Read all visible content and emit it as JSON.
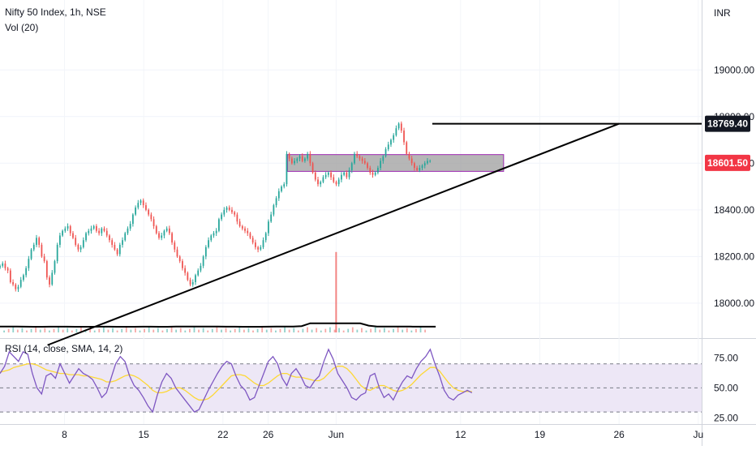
{
  "header": {
    "symbol_line": "Nifty 50 Index, 1h, NSE",
    "volume_label": "Vol (20)"
  },
  "currency": "INR",
  "rsi": {
    "label": "RSI (14, close, SMA, 14, 2)",
    "ticks": [
      "75.00",
      "50.00",
      "25.00"
    ]
  },
  "price_tags": [
    {
      "label": "18769.40",
      "value": 18769.4,
      "style": "dark"
    },
    {
      "label": "18601.50",
      "value": 18601.5,
      "style": "red"
    }
  ],
  "colors": {
    "up": "#26a69a",
    "down": "#ef5350",
    "grid": "#e0e3eb",
    "text": "#131722",
    "zone_fill": "#9e9e9e",
    "zone_border": "#9c27b0",
    "rsi_line": "#7e57c2",
    "rsi_ma": "#fdd835",
    "rsi_band": "#ede7f6",
    "tag_red": "#f23645",
    "tag_dark": "#131722"
  },
  "chart_data": {
    "type": "candlestick",
    "price_axis": {
      "ylim": [
        17850,
        19300
      ],
      "ticks": [
        "19000.00",
        "18800.00",
        "18600.00",
        "18400.00",
        "18200.00",
        "18000.00"
      ],
      "tick_values": [
        19000,
        18800,
        18600,
        18400,
        18200,
        18000
      ]
    },
    "x_axis": {
      "ticks": [
        {
          "label": "8",
          "day": 8
        },
        {
          "label": "15",
          "day": 15
        },
        {
          "label": "22",
          "day": 22
        },
        {
          "label": "26",
          "day": 26
        },
        {
          "label": "Jun",
          "day": 32
        },
        {
          "label": "12",
          "day": 43
        },
        {
          "label": "19",
          "day": 50
        },
        {
          "label": "26",
          "day": 57
        },
        {
          "label": "Ju",
          "day": 64
        }
      ],
      "day_range": [
        2.3,
        64.3
      ]
    },
    "close_series": [
      18160,
      18170,
      18150,
      18140,
      18090,
      18080,
      18060,
      18070,
      18100,
      18120,
      18150,
      18190,
      18230,
      18250,
      18280,
      18250,
      18200,
      18180,
      18110,
      18080,
      18130,
      18180,
      18250,
      18290,
      18310,
      18320,
      18330,
      18300,
      18280,
      18250,
      18230,
      18240,
      18270,
      18300,
      18310,
      18320,
      18330,
      18310,
      18300,
      18320,
      18310,
      18290,
      18270,
      18250,
      18230,
      18210,
      18250,
      18270,
      18300,
      18320,
      18340,
      18380,
      18410,
      18430,
      18440,
      18420,
      18400,
      18380,
      18360,
      18330,
      18300,
      18280,
      18290,
      18310,
      18320,
      18300,
      18260,
      18230,
      18200,
      18180,
      18150,
      18130,
      18100,
      18080,
      18090,
      18120,
      18140,
      18160,
      18200,
      18240,
      18270,
      18290,
      18300,
      18310,
      18360,
      18380,
      18400,
      18410,
      18400,
      18390,
      18380,
      18350,
      18330,
      18320,
      18310,
      18300,
      18280,
      18260,
      18240,
      18230,
      18240,
      18270,
      18300,
      18350,
      18380,
      18420,
      18450,
      18480,
      18500,
      18510,
      18640,
      18620,
      18600,
      18610,
      18620,
      18630,
      18610,
      18620,
      18640,
      18600,
      18560,
      18530,
      18510,
      18520,
      18540,
      18550,
      18560,
      18540,
      18520,
      18510,
      18530,
      18550,
      18560,
      18540,
      18570,
      18600,
      18640,
      18630,
      18620,
      18610,
      18600,
      18580,
      18560,
      18550,
      18560,
      18580,
      18610,
      18630,
      18660,
      18680,
      18700,
      18720,
      18750,
      18770,
      18740,
      18690,
      18640,
      18620,
      18600,
      18580,
      18570,
      18580,
      18590,
      18600,
      18610,
      18610
    ],
    "volume_ma_series": [
      0.3,
      0.3,
      0.3,
      0.28,
      0.25,
      0.25,
      0.27,
      0.28,
      0.27,
      0.25,
      0.25,
      0.26,
      0.28,
      0.27,
      0.26,
      0.25,
      0.25,
      0.27,
      0.28,
      0.26,
      0.25,
      0.3,
      0.32,
      0.33,
      0.3,
      0.29,
      0.3,
      0.28,
      0.27,
      0.26,
      0.26,
      0.26,
      0.27,
      0.3,
      0.3,
      0.3,
      0.45,
      1.3,
      1.3,
      1.32,
      1.3,
      1.33,
      1.32,
      1.3,
      0.6,
      0.3,
      0.3,
      0.3,
      0.3,
      0.3,
      0.28,
      0.27,
      0.28
    ],
    "volume_spike": {
      "day": 32,
      "relative_height": 6.2
    },
    "rsi_series": [
      62,
      68,
      80,
      76,
      72,
      80,
      78,
      62,
      50,
      45,
      60,
      62,
      58,
      70,
      62,
      54,
      60,
      66,
      62,
      60,
      57,
      50,
      42,
      46,
      58,
      70,
      76,
      72,
      60,
      52,
      48,
      42,
      35,
      30,
      44,
      55,
      62,
      58,
      50,
      45,
      40,
      35,
      30,
      32,
      40,
      48,
      55,
      62,
      68,
      72,
      70,
      60,
      52,
      48,
      40,
      42,
      52,
      62,
      72,
      76,
      70,
      58,
      52,
      62,
      66,
      60,
      52,
      50,
      56,
      60,
      72,
      82,
      74,
      62,
      56,
      50,
      42,
      40,
      44,
      46,
      60,
      62,
      50,
      42,
      45,
      40,
      48,
      55,
      60,
      58,
      66,
      72,
      76,
      82,
      70,
      60,
      48,
      42,
      40,
      44,
      46,
      48,
      46
    ],
    "rsi_ma_series": [
      63,
      64,
      65,
      67,
      68,
      69,
      70,
      70,
      69,
      67,
      65,
      64,
      63,
      62,
      62,
      61,
      61,
      61,
      60,
      60,
      59,
      58,
      57,
      55,
      55,
      56,
      58,
      60,
      61,
      60,
      58,
      55,
      52,
      48,
      46,
      46,
      47,
      49,
      50,
      50,
      48,
      45,
      42,
      40,
      40,
      41,
      44,
      48,
      52,
      56,
      60,
      61,
      61,
      60,
      57,
      54,
      52,
      52,
      54,
      57,
      60,
      62,
      62,
      60,
      59,
      59,
      58,
      57,
      56,
      56,
      58,
      62,
      66,
      68,
      68,
      66,
      62,
      57,
      52,
      49,
      48,
      50,
      52,
      52,
      50,
      48,
      47,
      48,
      50,
      53,
      57,
      61,
      64,
      67,
      67,
      64,
      59,
      54,
      50,
      48,
      47,
      47,
      47
    ],
    "horizontal_levels": [
      {
        "label": "18769.40",
        "value": 18769.4,
        "from_day": 40.5,
        "to_day": 64.3
      }
    ],
    "trendline": {
      "from": {
        "day": 6.5,
        "value": 17820
      },
      "to": {
        "day": 57,
        "value": 18769.4
      }
    },
    "zones": [
      {
        "from_day": 27.7,
        "to_day": 46.8,
        "low": 18565,
        "high": 18637
      }
    ],
    "rsi_axis": {
      "ylim": [
        20,
        90
      ],
      "band": [
        30,
        70
      ],
      "dashed_levels": [
        70,
        50,
        30
      ]
    }
  }
}
